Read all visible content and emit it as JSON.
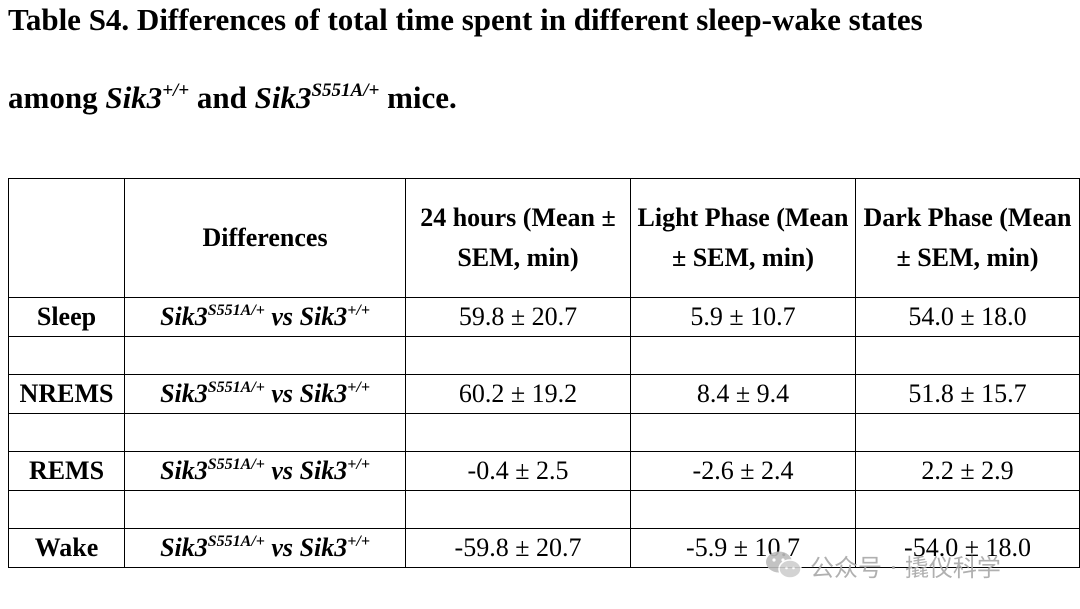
{
  "title": {
    "line1": "Table S4. Differences of total time spent in different sleep-wake states",
    "line2_prefix": "among ",
    "gene": "Sik3",
    "wt_sup": "+/+",
    "line2_and": " and ",
    "mut_sup": "S551A/+",
    "line2_suffix": " mice."
  },
  "table": {
    "headers": [
      "",
      "Differences",
      "24 hours (Mean ± SEM, min)",
      "Light Phase (Mean ± SEM, min)",
      "Dark Phase (Mean ± SEM, min)"
    ],
    "comparison": {
      "gene": "Sik3",
      "mut_sup": "S551A/+",
      "vs": " vs ",
      "wt_sup": "+/+"
    },
    "rows": [
      {
        "state": "Sleep",
        "h24": "59.8 ± 20.7",
        "light": "5.9 ± 10.7",
        "dark": "54.0 ± 18.0"
      },
      {
        "state": "NREMS",
        "h24": "60.2 ± 19.2",
        "light": "8.4 ± 9.4",
        "dark": "51.8 ± 15.7"
      },
      {
        "state": "REMS",
        "h24": "-0.4 ± 2.5",
        "light": "-2.6 ± 2.4",
        "dark": "2.2 ± 2.9"
      },
      {
        "state": "Wake",
        "h24": "-59.8 ± 20.7",
        "light": "-5.9 ± 10.7",
        "dark": "-54.0 ± 18.0"
      }
    ]
  },
  "watermark": {
    "text": "公众号 · 撬仪科学",
    "icon": "wechat-logo-icon"
  }
}
